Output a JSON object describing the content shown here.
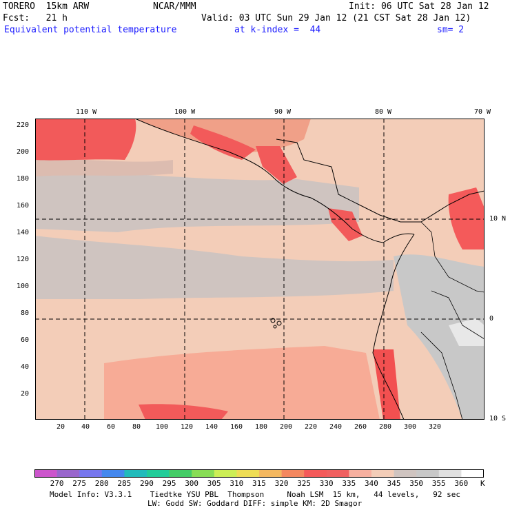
{
  "header": {
    "model": "TORERO  15km ARW",
    "org": "NCAR/MMM",
    "init": "Init: 06 UTC Sat 28 Jan 12",
    "fcst": "Fcst:   21 h",
    "valid": "Valid: 03 UTC Sun 29 Jan 12 (21 CST Sat 28 Jan 12)",
    "field": "Equivalent potential temperature",
    "level": "at k-index =  44",
    "smooth": "sm= 2"
  },
  "map": {
    "top_lon_labels": [
      "110 W",
      "100 W",
      "90 W",
      "80 W",
      "70 W"
    ],
    "right_lat_labels": [
      "10 N",
      "0",
      "10 S"
    ],
    "left_ticks": [
      "220",
      "200",
      "180",
      "160",
      "140",
      "120",
      "100",
      "80",
      "60",
      "40",
      "20"
    ],
    "bottom_ticks": [
      "20",
      "40",
      "60",
      "80",
      "100",
      "120",
      "140",
      "160",
      "180",
      "200",
      "220",
      "240",
      "260",
      "280",
      "300",
      "320"
    ]
  },
  "colorbar": {
    "labels": [
      "270",
      "275",
      "280",
      "285",
      "290",
      "295",
      "300",
      "305",
      "310",
      "315",
      "320",
      "325",
      "330",
      "335",
      "340",
      "345",
      "350",
      "355",
      "360"
    ],
    "unit": "K",
    "colors": [
      "#cc55cc",
      "#9966cc",
      "#7777ee",
      "#4488ee",
      "#22bbbb",
      "#22cc99",
      "#44cc66",
      "#88dd55",
      "#ccee55",
      "#eedd55",
      "#f4b860",
      "#f48860",
      "#f45a5a",
      "#f06060",
      "#f7b0a0",
      "#f3cdb8",
      "#cfc4c0",
      "#c8c8c8",
      "#e0e0e0",
      "#ffffff"
    ]
  },
  "footer": {
    "line1": "Model Info: V3.3.1    Tiedtke YSU PBL  Thompson     Noah LSM  15 km,   44 levels,   92 sec",
    "line2": "LW: Godd SW: Goddard DIFF: simple KM: 2D Smagor"
  }
}
